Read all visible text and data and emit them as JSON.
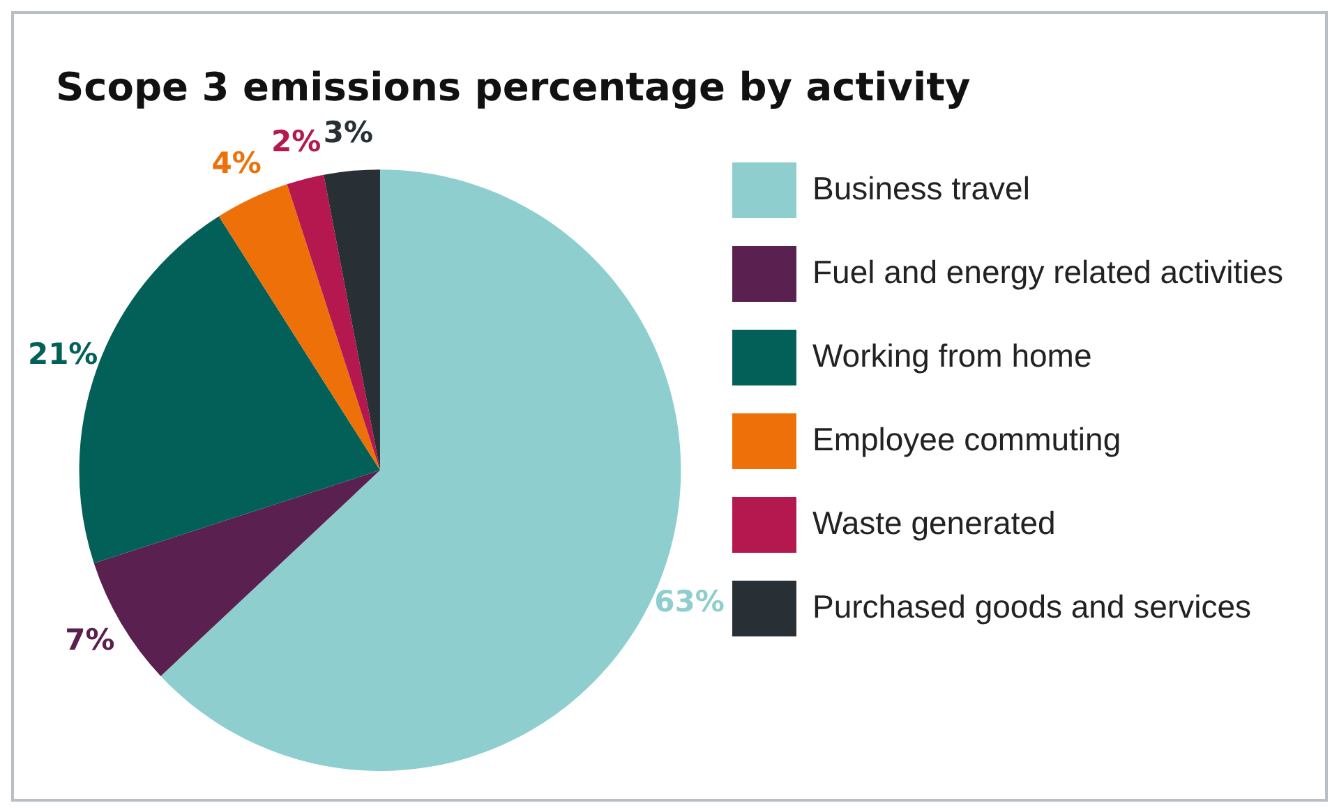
{
  "chart_data": {
    "type": "pie",
    "title": "Scope 3 emissions percentage by activity",
    "categories": [
      "Business travel",
      "Fuel and energy related activities",
      "Working from home",
      "Employee commuting",
      "Waste generated",
      "Purchased goods and services"
    ],
    "values": [
      63,
      7,
      21,
      4,
      2,
      3
    ],
    "colors": [
      "#8ecece",
      "#5a2150",
      "#036058",
      "#ee7009",
      "#b5174f",
      "#283035"
    ],
    "value_labels": [
      "63%",
      "7%",
      "21%",
      "4%",
      "2%",
      "3%"
    ],
    "legend": "right"
  }
}
